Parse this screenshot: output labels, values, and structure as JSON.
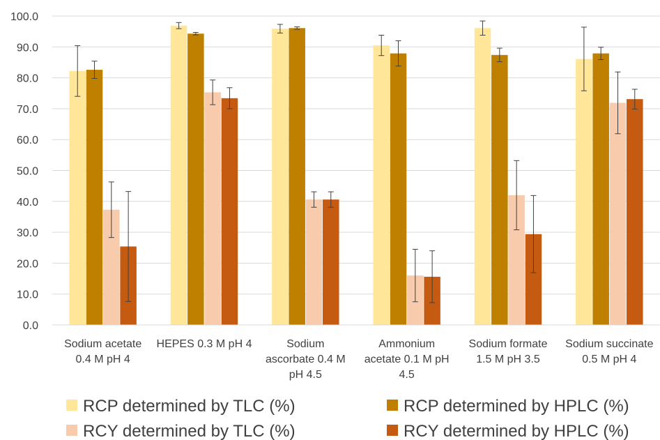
{
  "chart_data": {
    "type": "bar",
    "title": "",
    "xlabel": "",
    "ylabel": "",
    "ylim": [
      0,
      100
    ],
    "yticks": [
      "0.0",
      "10.0",
      "20.0",
      "30.0",
      "40.0",
      "50.0",
      "60.0",
      "70.0",
      "80.0",
      "90.0",
      "100.0"
    ],
    "grid": true,
    "legend_position": "bottom",
    "categories": [
      [
        "Sodium acetate",
        "0.4 M pH 4"
      ],
      [
        "HEPES 0.3 M pH 4"
      ],
      [
        "Sodium",
        "ascorbate 0.4 M",
        "pH 4.5"
      ],
      [
        "Ammonium",
        "acetate 0.1 M pH",
        "4.5"
      ],
      [
        "Sodium formate",
        "1.5 M pH 3.5"
      ],
      [
        "Sodium succinate",
        "0.5 M pH 4"
      ]
    ],
    "series": [
      {
        "name": "RCP determined by TLC (%)",
        "color": "#FFE699",
        "values": [
          82.2,
          96.9,
          95.9,
          90.5,
          96.1,
          86.1
        ],
        "errors": [
          8.2,
          1.0,
          1.4,
          3.3,
          2.3,
          10.3
        ]
      },
      {
        "name": "RCP determined by HPLC (%)",
        "color": "#BF8000",
        "values": [
          82.6,
          94.3,
          96.1,
          87.9,
          87.4,
          87.9
        ],
        "errors": [
          2.8,
          0.4,
          0.4,
          4.1,
          2.2,
          2.0
        ]
      },
      {
        "name": "RCY determined by TLC (%)",
        "color": "#F8CBAD",
        "values": [
          37.3,
          75.3,
          40.6,
          16.0,
          42.0,
          71.9
        ],
        "errors": [
          9.0,
          4.0,
          2.5,
          8.5,
          11.2,
          10.0
        ]
      },
      {
        "name": "RCY determined by HPLC (%)",
        "color": "#C55A11",
        "values": [
          25.4,
          73.4,
          40.6,
          15.6,
          29.4,
          73.1
        ],
        "errors": [
          17.8,
          3.4,
          2.5,
          8.4,
          12.5,
          3.2
        ]
      }
    ],
    "colors": {
      "grid": "#D9D9D9",
      "text": "#404040",
      "errorbar": "#404040"
    }
  }
}
